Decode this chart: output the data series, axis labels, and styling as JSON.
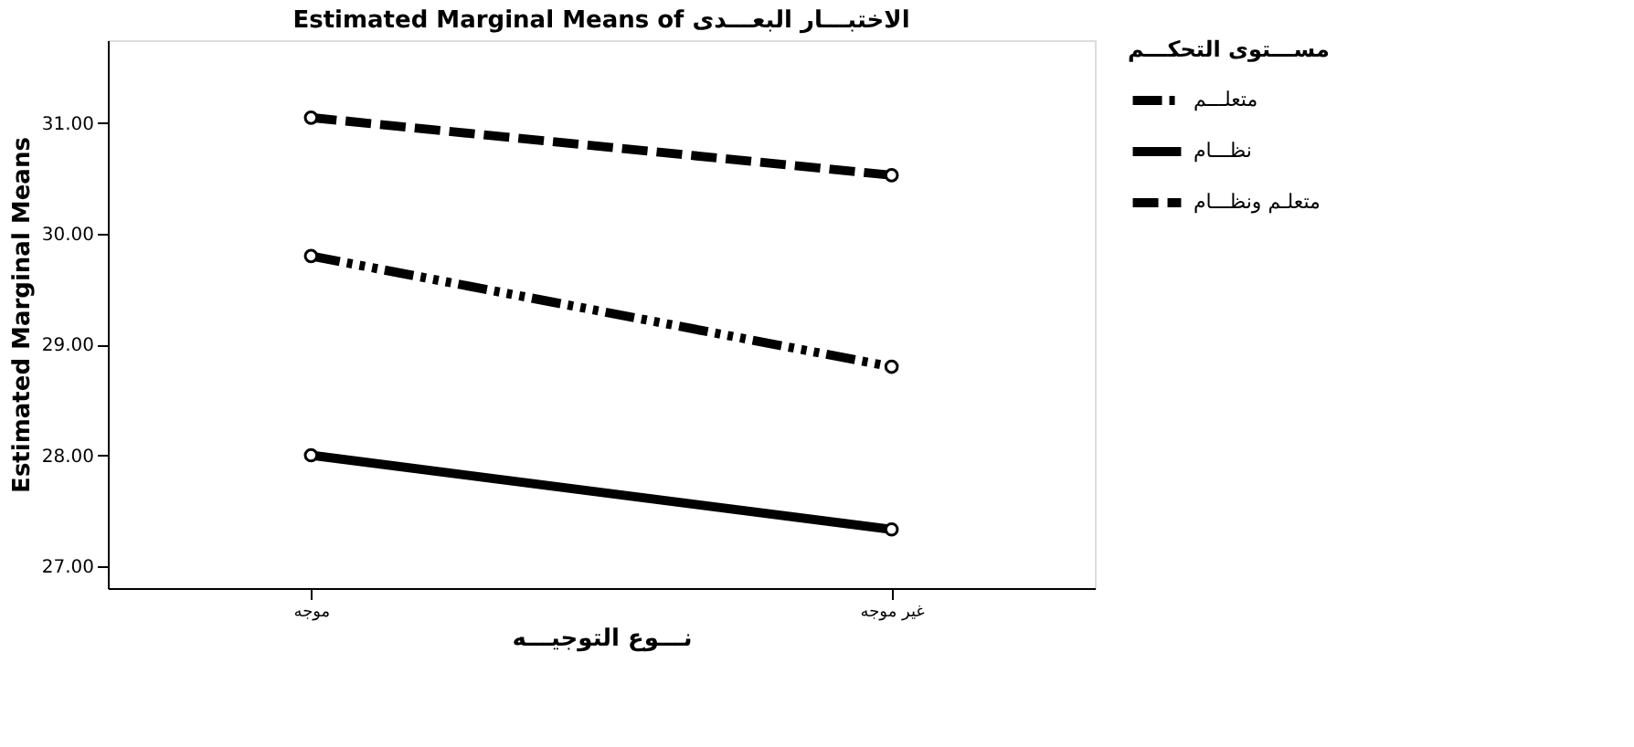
{
  "chart_data": {
    "type": "line",
    "title": "Estimated Marginal Means of الاختبـــار البعـــدى",
    "xlabel": "نـــوع التوجيـــه",
    "ylabel": "Estimated Marginal Means",
    "legend_title": "مســـتوى التحكـــم",
    "categories": [
      "موجه",
      "غير موجه"
    ],
    "series": [
      {
        "name": "متعلـــم",
        "color": "#000000",
        "values": [
          29.8,
          28.8
        ],
        "line_style": "dashdot"
      },
      {
        "name": "نظـــام",
        "color": "#000000",
        "values": [
          28.0,
          27.33
        ],
        "line_style": "solid"
      },
      {
        "name": "متعلـم ونظـــام",
        "color": "#000000",
        "values": [
          31.05,
          30.53
        ],
        "line_style": "dashed"
      }
    ],
    "ylim": [
      26.8,
      31.75
    ],
    "yticks": [
      {
        "value": 27,
        "label": "27.00"
      },
      {
        "value": 28,
        "label": "28.00"
      },
      {
        "value": 29,
        "label": "29.00"
      },
      {
        "value": 30,
        "label": "30.00"
      },
      {
        "value": 31,
        "label": "31.00"
      }
    ],
    "marker": "circle",
    "legend": "top right",
    "grid": false
  }
}
